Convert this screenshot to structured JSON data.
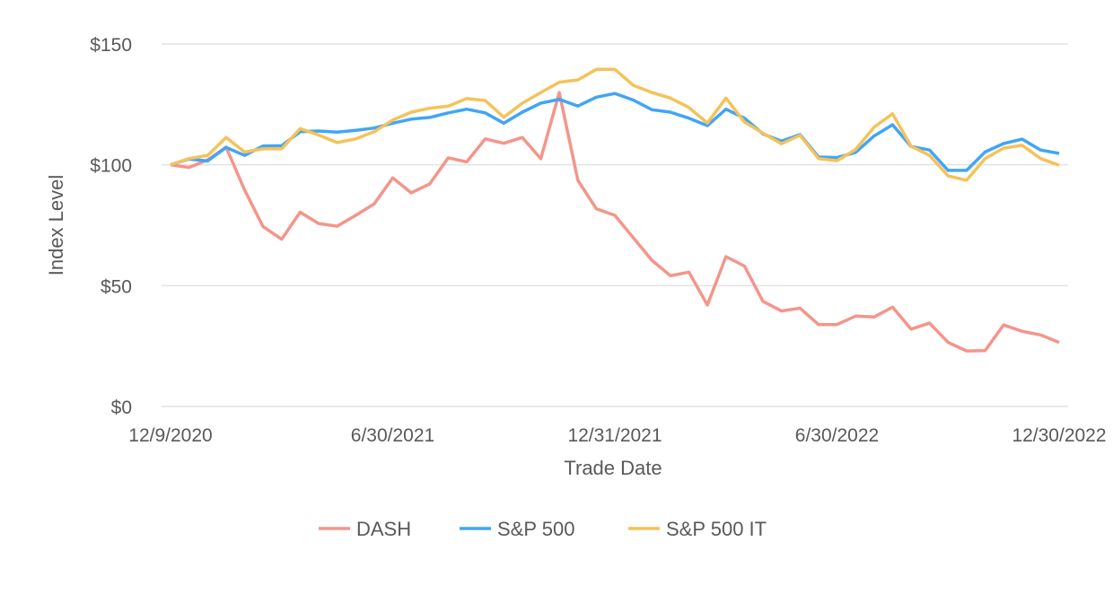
{
  "chart_data": {
    "type": "line",
    "title": "",
    "xlabel": "Trade Date",
    "ylabel": "Index Level",
    "ylim": [
      0,
      150
    ],
    "y_ticks": [
      0,
      50,
      100,
      150
    ],
    "y_tick_labels": [
      "$0",
      "$50",
      "$100",
      "$150"
    ],
    "x_tick_labels": [
      "12/9/2020",
      "6/30/2021",
      "12/31/2021",
      "6/30/2022",
      "12/30/2022"
    ],
    "x_tick_point_index": [
      0,
      12,
      24,
      36,
      48
    ],
    "grid": true,
    "legend_position": "bottom",
    "series": [
      {
        "name": "DASH",
        "color": "#f4958b",
        "values": [
          100,
          98.9,
          102,
          107.3,
          89.6,
          74.4,
          69.2,
          80.4,
          75.7,
          74.6,
          79.1,
          83.8,
          94.6,
          88.4,
          92.1,
          102.9,
          101.2,
          110.7,
          108.9,
          111.3,
          102.5,
          129.9,
          93.6,
          81.8,
          79.1,
          69.8,
          60.5,
          54.1,
          55.6,
          42.0,
          62.0,
          58.1,
          43.5,
          39.5,
          40.7,
          33.9,
          33.9,
          37.4,
          37.0,
          41.1,
          32.0,
          34.5,
          26.5,
          23.0,
          23.1,
          33.7,
          31.1,
          29.6,
          26.5
        ]
      },
      {
        "name": "S&P 500",
        "color": "#42a5f5",
        "values": [
          100,
          102.4,
          101.6,
          107.2,
          103.9,
          107.8,
          107.9,
          113.7,
          114.0,
          113.5,
          114.3,
          115.2,
          117.2,
          118.9,
          119.6,
          121.5,
          123.0,
          121.5,
          117.2,
          121.8,
          125.5,
          127.1,
          124.3,
          128.0,
          129.5,
          126.8,
          122.8,
          121.8,
          119.3,
          116.2,
          123.0,
          119.3,
          112.8,
          109.8,
          112.5,
          103.2,
          103.0,
          105.1,
          111.9,
          116.6,
          107.6,
          106.1,
          97.7,
          97.7,
          105.3,
          108.8,
          110.6,
          106.1,
          104.7
        ]
      },
      {
        "name": "S&P 500 IT",
        "color": "#f5c25a",
        "values": [
          100,
          102.6,
          103.9,
          111.3,
          105.3,
          106.6,
          106.6,
          115.0,
          112.3,
          109.2,
          110.7,
          113.7,
          118.5,
          121.8,
          123.4,
          124.3,
          127.4,
          126.6,
          119.7,
          125.5,
          129.9,
          134.2,
          135.1,
          139.5,
          139.5,
          132.9,
          129.9,
          127.6,
          123.7,
          117.3,
          127.6,
          117.7,
          113.1,
          108.7,
          112.2,
          102.6,
          101.7,
          106.3,
          115.6,
          121.1,
          107.7,
          103.9,
          95.4,
          93.6,
          102.6,
          106.9,
          108.1,
          102.6,
          99.8
        ]
      }
    ]
  }
}
